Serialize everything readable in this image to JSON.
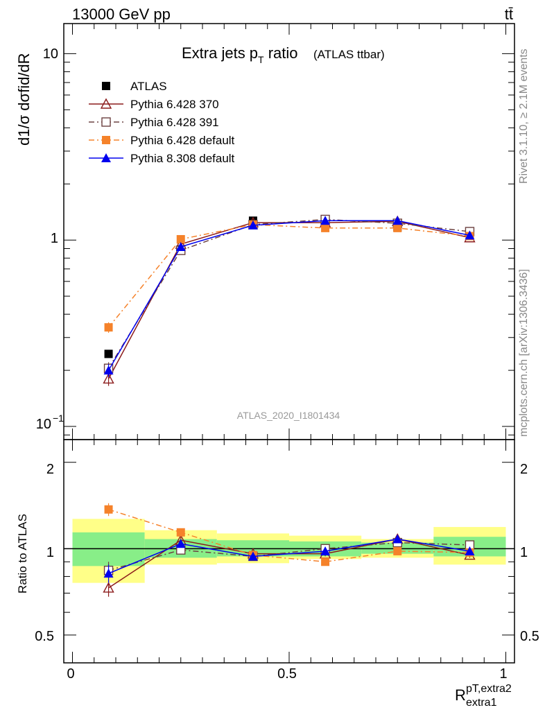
{
  "header": {
    "energy_label": "13000 GeV pp",
    "process_label": "tt̄"
  },
  "side_labels": {
    "rivet": "Rivet 3.1.10, ≥ 2.1M events",
    "mcplots": "mcplots.cern.ch [arXiv:1306.3436]"
  },
  "chart_data": [
    {
      "type": "scatter",
      "title": "Extra jets p_T ratio",
      "title_main": "Extra jets p",
      "title_sub": "T",
      "title_rest": " ratio",
      "subtitle": "(ATLAS ttbar)",
      "analysis_label": "ATLAS_2020_I1801434",
      "ylabel": "d1/σ dσfid/dR",
      "yscale": "log",
      "xlim": [
        -0.02,
        1.02
      ],
      "ylim": [
        0.085,
        14.5
      ],
      "ytick_labels": {
        "major_10": "10",
        "major_1": "1",
        "major_01": "10",
        "major_01_exp": "−1"
      },
      "legend": [
        "ATLAS",
        "Pythia 6.428 370",
        "Pythia 6.428 391",
        "Pythia 6.428 default",
        "Pythia 8.308 default"
      ],
      "legend_placement": "top-left",
      "x": [
        0.0833,
        0.25,
        0.4167,
        0.5833,
        0.75,
        0.9167
      ],
      "series": [
        {
          "name": "ATLAS",
          "color": "#000000",
          "marker": "square-filled",
          "values": [
            0.245,
            0.89,
            1.27,
            1.28,
            1.17,
            1.08
          ]
        },
        {
          "name": "Pythia 6.428 370",
          "color": "#8b1a1a",
          "marker": "triangle-open",
          "values": [
            0.18,
            0.95,
            1.24,
            1.24,
            1.26,
            1.03
          ],
          "err": [
            0.015,
            0.02,
            0.02,
            0.02,
            0.02,
            0.02
          ]
        },
        {
          "name": "Pythia 6.428 391",
          "color": "#6b4040",
          "marker": "square-open",
          "values": [
            0.205,
            0.88,
            1.21,
            1.29,
            1.23,
            1.11
          ],
          "err": [
            0.016,
            0.02,
            0.02,
            0.02,
            0.02,
            0.02
          ]
        },
        {
          "name": "Pythia 6.428 default",
          "color": "#f5822a",
          "marker": "square-filled",
          "values": [
            0.34,
            1.01,
            1.21,
            1.16,
            1.16,
            1.05
          ],
          "err": [
            0.022,
            0.02,
            0.02,
            0.02,
            0.02,
            0.02
          ]
        },
        {
          "name": "Pythia 8.308 default",
          "color": "#0000ee",
          "marker": "triangle-filled",
          "values": [
            0.2,
            0.92,
            1.2,
            1.27,
            1.27,
            1.06
          ],
          "err": [
            0.016,
            0.02,
            0.02,
            0.02,
            0.02,
            0.02
          ]
        }
      ]
    },
    {
      "type": "scatter",
      "ylabel": "Ratio to ATLAS",
      "xlabel": "R",
      "xlabel_sup": "pT,extra2",
      "xlabel_sub": "extra1",
      "yscale": "log",
      "xlim": [
        -0.02,
        1.02
      ],
      "ylim": [
        0.4,
        2.4
      ],
      "x_tick_labels": [
        "0",
        "0.5",
        "1"
      ],
      "y_tick_labels": [
        "2",
        "1",
        "0.5"
      ],
      "bins": [
        [
          0.0,
          0.1667
        ],
        [
          0.1667,
          0.3333
        ],
        [
          0.3333,
          0.5
        ],
        [
          0.5,
          0.6667
        ],
        [
          0.6667,
          0.8333
        ],
        [
          0.8333,
          1.0
        ]
      ],
      "band_inner": [
        [
          0.87,
          1.14
        ],
        [
          0.93,
          1.08
        ],
        [
          0.94,
          1.07
        ],
        [
          0.94,
          1.06
        ],
        [
          0.96,
          1.05
        ],
        [
          0.94,
          1.1
        ]
      ],
      "band_outer": [
        [
          0.76,
          1.27
        ],
        [
          0.88,
          1.16
        ],
        [
          0.89,
          1.13
        ],
        [
          0.92,
          1.11
        ],
        [
          0.93,
          1.08
        ],
        [
          0.88,
          1.19
        ]
      ],
      "x": [
        0.0833,
        0.25,
        0.4167,
        0.5833,
        0.75,
        0.9167
      ],
      "series": [
        {
          "name": "Pythia 6.428 370",
          "values": [
            0.73,
            1.07,
            0.96,
            0.96,
            1.08,
            0.95
          ],
          "err": [
            0.05,
            0.03,
            0.02,
            0.02,
            0.02,
            0.02
          ]
        },
        {
          "name": "Pythia 6.428 391",
          "values": [
            0.84,
            0.99,
            0.94,
            1.0,
            1.05,
            1.03
          ],
          "err": [
            0.06,
            0.03,
            0.02,
            0.02,
            0.02,
            0.02
          ]
        },
        {
          "name": "Pythia 6.428 default",
          "values": [
            1.37,
            1.14,
            0.95,
            0.9,
            0.98,
            0.97
          ],
          "err": [
            0.07,
            0.03,
            0.02,
            0.02,
            0.02,
            0.02
          ]
        },
        {
          "name": "Pythia 8.308 default",
          "values": [
            0.82,
            1.04,
            0.94,
            0.98,
            1.08,
            0.98
          ],
          "err": [
            0.06,
            0.03,
            0.02,
            0.02,
            0.02,
            0.02
          ]
        }
      ]
    }
  ]
}
